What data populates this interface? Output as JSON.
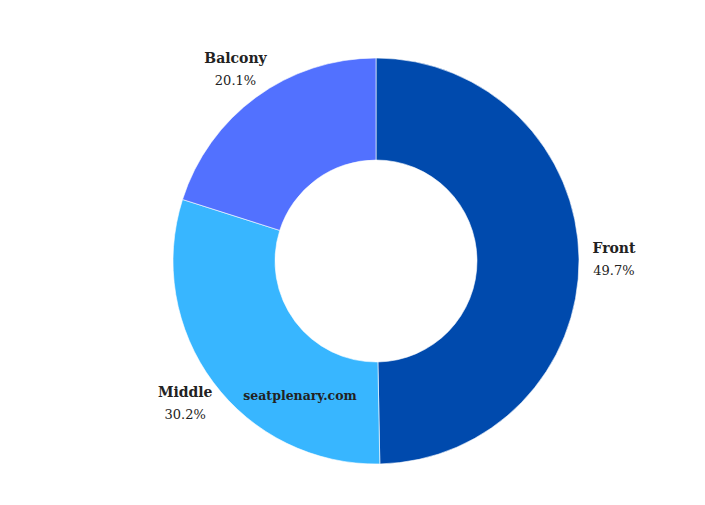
{
  "chart_data": {
    "type": "donut",
    "categories": [
      "Front",
      "Middle",
      "Balcony"
    ],
    "values": [
      49.7,
      30.2,
      20.1
    ],
    "value_labels": [
      "49.7%",
      "30.2%",
      "20.1%"
    ],
    "colors": [
      "#004aad",
      "#38b6ff",
      "#5271ff"
    ],
    "data_labels": true,
    "annotations": [
      "seatplenary.com"
    ]
  }
}
